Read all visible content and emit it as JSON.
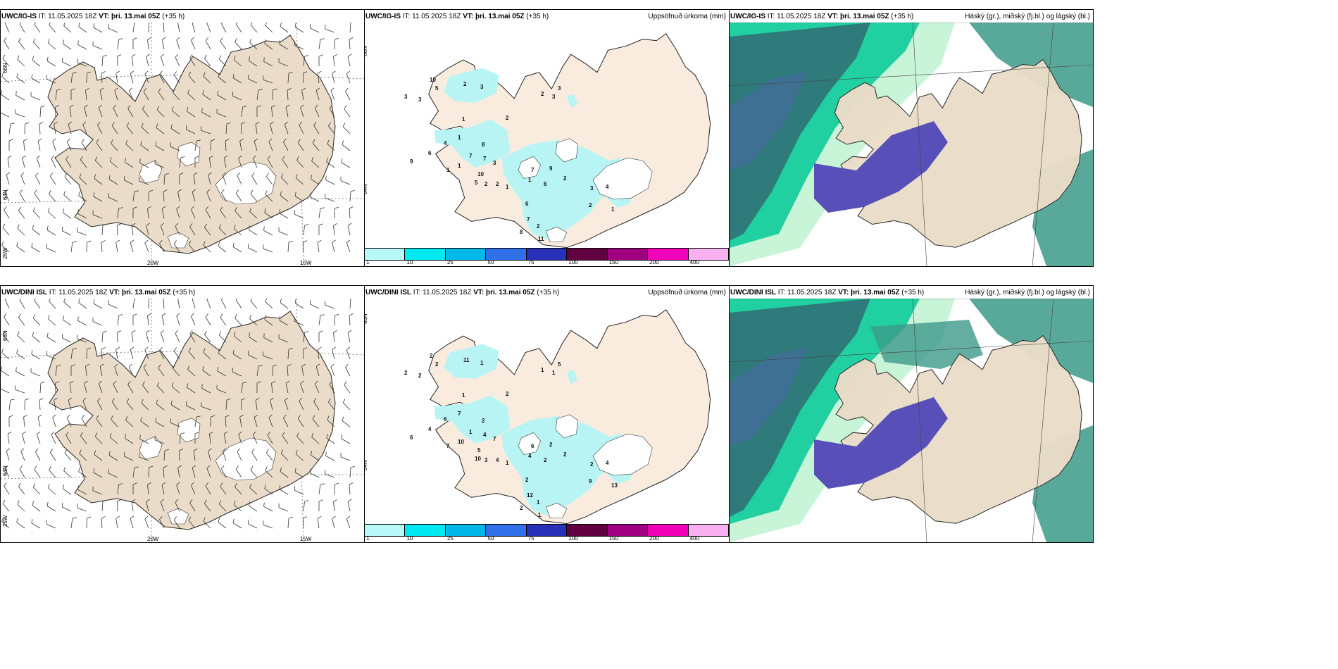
{
  "panels": [
    {
      "model": "UWC/IG-IS",
      "it_label": "IT:",
      "it": "11.05.2025 18Z",
      "vt_label": "VT:",
      "vt": "þri. 13.mai 05Z",
      "lead": "(+35 h)",
      "right": ""
    },
    {
      "model": "UWC/IG-IS",
      "it_label": "IT:",
      "it": "11.05.2025 18Z",
      "vt_label": "VT:",
      "vt": "þri. 13.mai 05Z",
      "lead": "(+35 h)",
      "right": "Uppsöfnuð úrkoma (mm)"
    },
    {
      "model": "UWC/IG-IS",
      "it_label": "IT:",
      "it": "11.05.2025 18Z",
      "vt_label": "VT:",
      "vt": "þri. 13.mai 05Z",
      "lead": "(+35 h)",
      "right": "Háský (gr.), miðský (fj.bl.) og lágský (bl.)"
    },
    {
      "model": "UWC/DINI ISL",
      "it_label": "IT:",
      "it": "11.05.2025 18Z",
      "vt_label": "VT:",
      "vt": "þri. 13.mai 05Z",
      "lead": "(+35 h)",
      "right": ""
    },
    {
      "model": "UWC/DINI ISL",
      "it_label": "IT:",
      "it": "11.05.2025 18Z",
      "vt_label": "VT:",
      "vt": "þri. 13.mai 05Z",
      "lead": "(+35 h)",
      "right": "Uppsöfnuð úrkoma (mm)"
    },
    {
      "model": "UWC/DINI ISL",
      "it_label": "IT:",
      "it": "11.05.2025 18Z",
      "vt_label": "VT:",
      "vt": "þri. 13.mai 05Z",
      "lead": "(+35 h)",
      "right": "Háský (gr.), miðský (fj.bl.) og lágský (bl.)"
    }
  ],
  "grid_labels": {
    "lat_66": "66N",
    "lat_64": "64N",
    "lat_25w": "25W",
    "lon_20": "20W",
    "lon_15": "15W"
  },
  "colorbar": {
    "labels": [
      "1",
      "10",
      "25",
      "50",
      "75",
      "100",
      "150",
      "200",
      "400"
    ],
    "colors": [
      "#b8f8f8",
      "#00e8f0",
      "#00b8e8",
      "#3070e8",
      "#2830b8",
      "#600040",
      "#a00080",
      "#f000b8",
      "#f8b0f0"
    ]
  },
  "precip_top": [
    "3",
    "3",
    "10",
    "5",
    "2",
    "3",
    "2",
    "3",
    "3",
    "1",
    "2",
    "1",
    "4",
    "1",
    "9",
    "6",
    "8",
    "7",
    "7",
    "3",
    "1",
    "10",
    "5",
    "2",
    "2",
    "1",
    "1",
    "7",
    "6",
    "9",
    "2",
    "3",
    "4",
    "2",
    "6",
    "7",
    "2",
    "8",
    "11",
    "1"
  ],
  "precip_bottom": [
    "2",
    "2",
    "2",
    "2",
    "11",
    "1",
    "1",
    "1",
    "5",
    "1",
    "2",
    "7",
    "6",
    "7",
    "6",
    "4",
    "2",
    "1",
    "4",
    "7",
    "10",
    "5",
    "10",
    "3",
    "4",
    "1",
    "4",
    "6",
    "2",
    "2",
    "2",
    "2",
    "4",
    "9",
    "2",
    "12",
    "1",
    "2",
    "1",
    "13"
  ],
  "colors": {
    "land": "#eadcc8",
    "land_light": "#f9ecdf",
    "precip": "#b8f4f4",
    "cloud_dark": "#2f7a7a",
    "cloud_mid": "#3c9a8a",
    "cloud_green": "#20d0a0",
    "cloud_light": "#c8f4d8",
    "cloud_purple": "#5850b8"
  }
}
